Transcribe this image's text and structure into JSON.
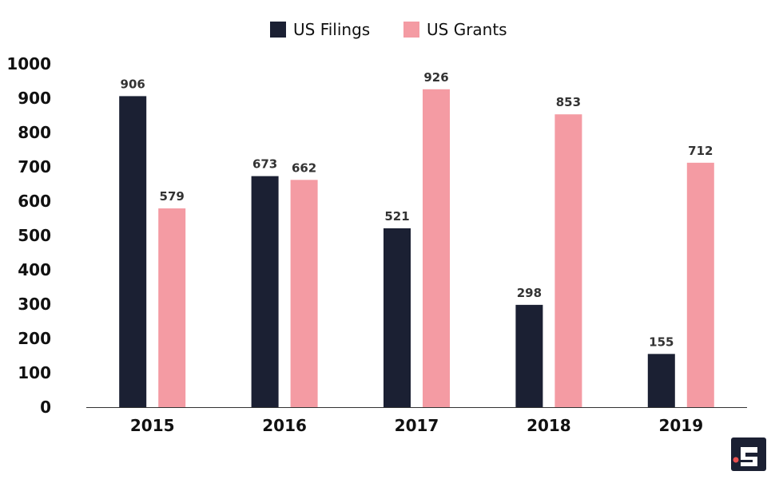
{
  "chart_data": {
    "type": "bar",
    "title": "",
    "xlabel": "",
    "ylabel": "",
    "categories": [
      "2015",
      "2016",
      "2017",
      "2018",
      "2019"
    ],
    "series": [
      {
        "name": "US Filings",
        "color": "#1b2033",
        "values": [
          906,
          673,
          521,
          298,
          155
        ]
      },
      {
        "name": "US Grants",
        "color": "#f49ba3",
        "values": [
          579,
          662,
          926,
          853,
          712
        ]
      }
    ],
    "ylim": [
      0,
      1000
    ],
    "yticks": [
      0,
      100,
      200,
      300,
      400,
      500,
      600,
      700,
      800,
      900,
      1000
    ],
    "grid": false,
    "legend_position": "top-center",
    "logo_icon": "statista-logo-icon"
  }
}
